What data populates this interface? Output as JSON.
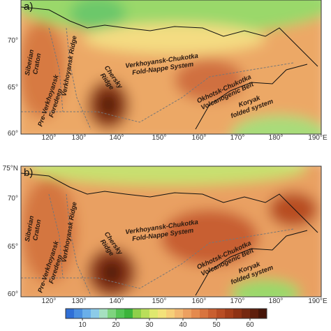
{
  "panels": [
    {
      "label": "a)",
      "x_labels": [
        "120°",
        "130°",
        "140°",
        "150°",
        "160°",
        "170°",
        "180°",
        "190°E"
      ],
      "y_labels": [
        "70°",
        "65°",
        "60°"
      ],
      "regions": [
        {
          "lines": [
            "Siberian",
            "Craton"
          ]
        },
        {
          "lines": [
            "Verkhoyansk Ridge"
          ]
        },
        {
          "lines": [
            "Pre-Verkhoyansk",
            "Foredeep"
          ]
        },
        {
          "lines": [
            "Chersky",
            "Ridge"
          ]
        },
        {
          "lines": [
            "Verkhoyansk-Chukotka",
            "Fold-Nappe System"
          ]
        },
        {
          "lines": [
            "Okhotsk-Chukotka",
            "Volcanogenic Belt"
          ]
        },
        {
          "lines": [
            "Koryak",
            "folded system"
          ]
        }
      ]
    },
    {
      "label": "b)",
      "x_labels": [
        "120°",
        "130°",
        "140°",
        "150°",
        "160°",
        "170°",
        "180°",
        "190°E"
      ],
      "y_labels": [
        "75°N",
        "70°",
        "65°",
        "60°"
      ],
      "regions": [
        {
          "lines": [
            "Siberian",
            "Craton"
          ]
        },
        {
          "lines": [
            "Verkhoyansk Ridge"
          ]
        },
        {
          "lines": [
            "Pre-Verkhoyansk",
            "Foredeep"
          ]
        },
        {
          "lines": [
            "Chersky",
            "Ridge"
          ]
        },
        {
          "lines": [
            "Verkhoyansk-Chukotka",
            "Fold-Nappe System"
          ]
        },
        {
          "lines": [
            "Okhotsk-Chukotka",
            "Volcanogenic Belt"
          ]
        },
        {
          "lines": [
            "Koryak",
            "folded system"
          ]
        }
      ]
    }
  ],
  "colorbar": {
    "lim": [
      5,
      65
    ],
    "ticks": [
      10,
      20,
      30,
      40,
      50,
      60
    ],
    "colors": [
      "#2f6fd6",
      "#4a8fe0",
      "#6aafea",
      "#8ccbe8",
      "#a6e0c0",
      "#7fd47f",
      "#55c455",
      "#3cb43c",
      "#8ed04a",
      "#b9de5a",
      "#dfe86e",
      "#f3e27a",
      "#f6cf78",
      "#f2b870",
      "#eca060",
      "#e48a4e",
      "#d8743e",
      "#c95f30",
      "#b84d24",
      "#a43e1a",
      "#8e3214",
      "#762810",
      "#5e1e0c",
      "#461508"
    ]
  }
}
